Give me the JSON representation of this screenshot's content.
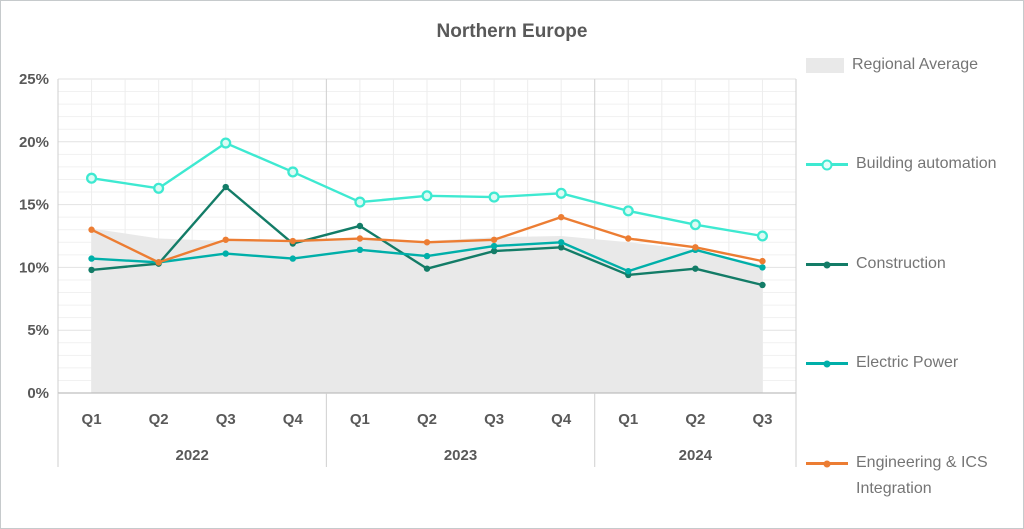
{
  "chart_data": {
    "type": "line",
    "title": "Northern Europe",
    "categories": [
      "Q1",
      "Q2",
      "Q3",
      "Q4",
      "Q1",
      "Q2",
      "Q3",
      "Q4",
      "Q1",
      "Q2",
      "Q3"
    ],
    "year_groups": [
      {
        "label": "2022",
        "count": 4
      },
      {
        "label": "2023",
        "count": 4
      },
      {
        "label": "2024",
        "count": 3
      }
    ],
    "y_ticks": [
      "0%",
      "5%",
      "10%",
      "15%",
      "20%",
      "25%"
    ],
    "ylim": [
      0,
      25
    ],
    "unit": "%",
    "grid": "horizontal minor 1% / major 5%; vertical every half quarter; year separators below axis",
    "legend_position": "right",
    "series": [
      {
        "name": "Regional Average",
        "type": "area",
        "color": "#E9E9E9",
        "values": [
          13.1,
          12.3,
          12.1,
          12.2,
          12.2,
          12.1,
          12.4,
          12.5,
          12.0,
          11.4,
          10.2
        ]
      },
      {
        "name": "Building automation",
        "type": "line",
        "marker": "open-circle",
        "color": "#3EE9D1",
        "values": [
          17.1,
          16.3,
          19.9,
          17.6,
          15.2,
          15.7,
          15.6,
          15.9,
          14.5,
          13.4,
          12.5
        ]
      },
      {
        "name": "Construction",
        "type": "line",
        "marker": "dot",
        "color": "#137C67",
        "values": [
          9.8,
          10.3,
          16.4,
          11.9,
          13.3,
          9.9,
          11.3,
          11.6,
          9.4,
          9.9,
          8.6
        ]
      },
      {
        "name": "Electric Power",
        "type": "line",
        "marker": "dot",
        "color": "#00AFA9",
        "values": [
          10.7,
          10.4,
          11.1,
          10.7,
          11.4,
          10.9,
          11.7,
          12.0,
          9.7,
          11.4,
          10.0
        ]
      },
      {
        "name": "Engineering & ICS Integration",
        "type": "line",
        "marker": "dot",
        "color": "#EC7D33",
        "values": [
          13.0,
          10.4,
          12.2,
          12.1,
          12.3,
          12.0,
          12.2,
          14.0,
          12.3,
          11.6,
          10.5
        ]
      }
    ],
    "axis_colors": {
      "label": "#595959",
      "axis_line": "#BFBFBF",
      "major_grid": "#E2E2E2",
      "minor_grid": "#F1F1F1",
      "frame": "#CFCFCF"
    }
  }
}
